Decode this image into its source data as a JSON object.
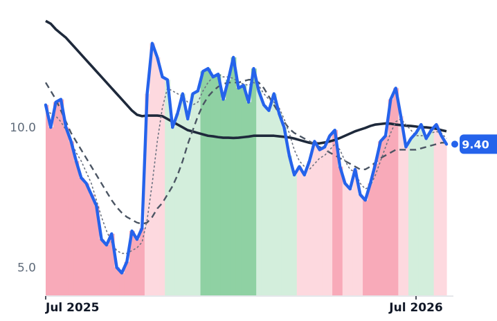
{
  "chart_data": {
    "type": "line",
    "title": "",
    "xlabel": "",
    "ylabel": "",
    "x_ticks": [
      {
        "label": "Jul 2025",
        "index": 0
      },
      {
        "label": "Jul 2026",
        "index": 73
      }
    ],
    "y_ticks": [
      5.0,
      10.0
    ],
    "y_tick_labels": [
      "5.0",
      "10.0"
    ],
    "ylim": [
      4.0,
      14.3
    ],
    "n_points": 80,
    "last_value_label": "9.40",
    "colors": {
      "price": "#2563eb",
      "long_ma": "#1e293b",
      "mid_ma": "#4b5563",
      "short_ma": "#6b7280",
      "badge": "#2563eb",
      "axis": "#e5e7eb"
    },
    "regime_colors": {
      "strong_down": "#f8aab9",
      "weak_down": "#fdd9df",
      "weak_up": "#d3eedc",
      "strong_up": "#8fd1a3"
    },
    "regimes": [
      {
        "start": 0,
        "end": 20,
        "kind": "strong_down"
      },
      {
        "start": 20,
        "end": 24,
        "kind": "weak_down"
      },
      {
        "start": 24,
        "end": 31,
        "kind": "weak_up"
      },
      {
        "start": 31,
        "end": 42,
        "kind": "strong_up"
      },
      {
        "start": 42,
        "end": 50,
        "kind": "weak_up"
      },
      {
        "start": 50,
        "end": 57,
        "kind": "weak_down"
      },
      {
        "start": 57,
        "end": 59,
        "kind": "strong_down"
      },
      {
        "start": 59,
        "end": 63,
        "kind": "weak_down"
      },
      {
        "start": 63,
        "end": 70,
        "kind": "strong_down"
      },
      {
        "start": 70,
        "end": 72,
        "kind": "weak_down"
      },
      {
        "start": 72,
        "end": 77,
        "kind": "weak_up"
      },
      {
        "start": 77,
        "end": 80,
        "kind": "weak_down"
      }
    ],
    "series": [
      {
        "key": "price",
        "values": [
          10.8,
          10.0,
          10.9,
          11.0,
          10.0,
          9.5,
          8.8,
          8.2,
          8.0,
          7.6,
          7.2,
          6.0,
          5.8,
          6.2,
          5.0,
          4.8,
          5.2,
          6.3,
          6.0,
          6.4,
          11.2,
          13.0,
          12.5,
          11.8,
          11.7,
          10.0,
          10.5,
          11.2,
          10.3,
          11.2,
          11.3,
          12.0,
          12.1,
          11.8,
          11.9,
          11.0,
          11.7,
          12.5,
          11.4,
          11.5,
          10.9,
          12.1,
          11.3,
          10.8,
          10.6,
          11.2,
          10.5,
          10.0,
          9.0,
          8.3,
          8.6,
          8.3,
          8.8,
          9.5,
          9.2,
          9.3,
          9.7,
          9.9,
          8.6,
          8.0,
          7.8,
          8.5,
          7.6,
          7.4,
          8.0,
          8.7,
          9.5,
          9.7,
          11.0,
          11.4,
          10.4,
          9.3,
          9.6,
          9.8,
          10.1,
          9.6,
          9.9,
          10.1,
          9.7,
          9.4
        ]
      },
      {
        "key": "long_ma",
        "values": [
          13.8,
          13.7,
          13.5,
          13.35,
          13.2,
          13.0,
          12.8,
          12.6,
          12.4,
          12.2,
          12.0,
          11.8,
          11.6,
          11.4,
          11.2,
          11.0,
          10.8,
          10.6,
          10.45,
          10.4,
          10.42,
          10.42,
          10.42,
          10.4,
          10.3,
          10.2,
          10.1,
          10.0,
          9.9,
          9.85,
          9.8,
          9.75,
          9.7,
          9.68,
          9.65,
          9.63,
          9.63,
          9.62,
          9.63,
          9.65,
          9.67,
          9.7,
          9.7,
          9.7,
          9.7,
          9.7,
          9.68,
          9.66,
          9.64,
          9.6,
          9.55,
          9.5,
          9.45,
          9.42,
          9.43,
          9.46,
          9.5,
          9.55,
          9.62,
          9.7,
          9.78,
          9.86,
          9.92,
          9.98,
          10.05,
          10.1,
          10.12,
          10.14,
          10.13,
          10.1,
          10.08,
          10.06,
          10.05,
          10.03,
          10.0,
          10.0,
          9.98,
          9.95,
          9.9,
          9.86
        ]
      },
      {
        "key": "mid_ma",
        "values": [
          11.6,
          11.3,
          11.0,
          10.6,
          10.2,
          9.8,
          9.5,
          9.2,
          8.9,
          8.6,
          8.3,
          8.0,
          7.7,
          7.4,
          7.15,
          6.95,
          6.8,
          6.7,
          6.6,
          6.55,
          6.6,
          6.8,
          7.1,
          7.3,
          7.6,
          7.9,
          8.3,
          8.8,
          9.4,
          9.9,
          10.4,
          10.8,
          11.1,
          11.3,
          11.45,
          11.55,
          11.6,
          11.6,
          11.6,
          11.65,
          11.7,
          11.7,
          11.6,
          11.4,
          11.1,
          10.8,
          10.5,
          10.2,
          9.95,
          9.8,
          9.7,
          9.6,
          9.5,
          9.4,
          9.3,
          9.2,
          9.1,
          9.0,
          8.9,
          8.8,
          8.7,
          8.6,
          8.5,
          8.5,
          8.6,
          8.75,
          8.9,
          9.0,
          9.1,
          9.2,
          9.2,
          9.2,
          9.2,
          9.2,
          9.25,
          9.3,
          9.35,
          9.4,
          9.45,
          9.45
        ]
      },
      {
        "key": "short_ma",
        "values": [
          10.6,
          10.5,
          10.4,
          10.2,
          9.9,
          9.5,
          9.1,
          8.8,
          8.4,
          8.0,
          7.4,
          6.8,
          6.3,
          5.9,
          5.6,
          5.5,
          5.5,
          5.6,
          5.7,
          5.9,
          6.7,
          8.0,
          9.5,
          10.7,
          11.4,
          11.3,
          11.2,
          11.1,
          10.9,
          10.8,
          10.9,
          11.3,
          11.6,
          11.8,
          11.9,
          11.8,
          11.8,
          11.75,
          11.6,
          11.55,
          11.5,
          11.6,
          11.5,
          11.2,
          11.0,
          10.9,
          10.7,
          10.3,
          9.8,
          9.2,
          8.8,
          8.6,
          8.5,
          8.7,
          8.9,
          9.0,
          9.2,
          9.4,
          9.2,
          8.8,
          8.5,
          8.4,
          8.0,
          7.8,
          7.9,
          8.3,
          8.8,
          9.3,
          9.8,
          10.2,
          10.3,
          10.1,
          9.9,
          9.7,
          9.7,
          9.7,
          9.8,
          9.85,
          9.8,
          9.6
        ]
      }
    ]
  }
}
